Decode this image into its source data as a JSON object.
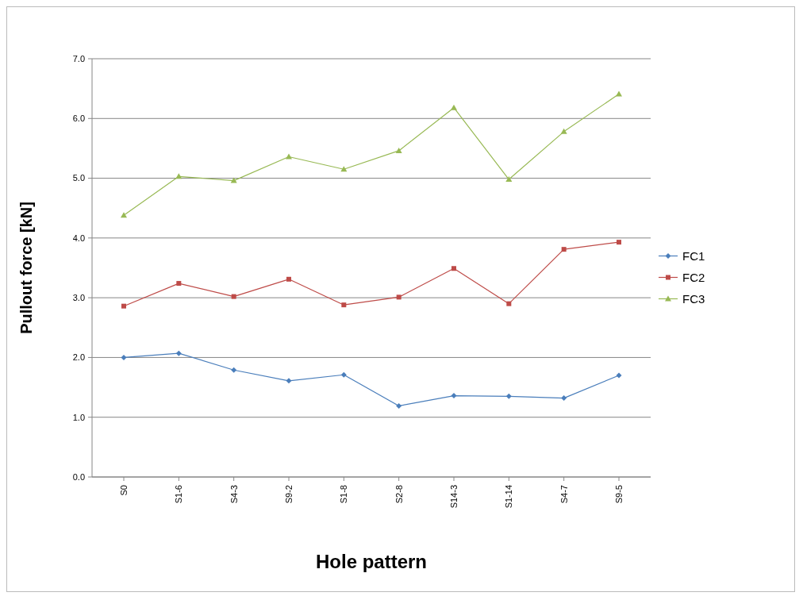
{
  "chart_data": {
    "type": "line",
    "xlabel": "Hole pattern",
    "ylabel": "Pullout force  [kN]",
    "categories": [
      "S0",
      "S1-6",
      "S4-3",
      "S9-2",
      "S1-8",
      "S2-8",
      "S14-3",
      "S1-14",
      "S4-7",
      "S9-5"
    ],
    "series": [
      {
        "name": "FC1",
        "color": "#4a7ebb",
        "marker": "diamond",
        "values": [
          2.0,
          2.07,
          1.79,
          1.61,
          1.71,
          1.19,
          1.36,
          1.35,
          1.32,
          1.7
        ]
      },
      {
        "name": "FC2",
        "color": "#be4b48",
        "marker": "square",
        "values": [
          2.86,
          3.24,
          3.02,
          3.31,
          2.88,
          3.01,
          3.49,
          2.9,
          3.81,
          3.93
        ]
      },
      {
        "name": "FC3",
        "color": "#98b954",
        "marker": "triangle",
        "values": [
          4.38,
          5.03,
          4.96,
          5.36,
          5.15,
          5.46,
          6.18,
          4.98,
          5.78,
          6.41
        ]
      }
    ],
    "ylim": [
      0,
      7
    ],
    "yticks": [
      {
        "value": 0,
        "label": "0.0"
      },
      {
        "value": 1,
        "label": "1.0"
      },
      {
        "value": 2,
        "label": "2.0"
      },
      {
        "value": 3,
        "label": "3.0"
      },
      {
        "value": 4,
        "label": "4.0"
      },
      {
        "value": 5,
        "label": "5.0"
      },
      {
        "value": 6,
        "label": "6.0"
      },
      {
        "value": 7,
        "label": "7.0"
      }
    ],
    "grid": "y",
    "legend": "right"
  }
}
